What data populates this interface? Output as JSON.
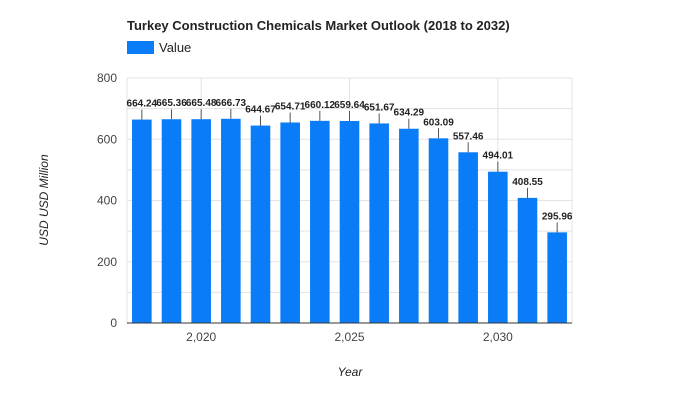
{
  "chart_data": {
    "type": "bar",
    "title": "Turkey Construction Chemicals Market Outlook (2018 to 2032)",
    "xlabel": "Year",
    "ylabel": "USD USD Million",
    "legend": {
      "entries": [
        "Value"
      ],
      "placement": "top-left"
    },
    "color": "#0a7cf7",
    "grid": true,
    "x": [
      2018,
      2019,
      2020,
      2021,
      2022,
      2023,
      2024,
      2025,
      2026,
      2027,
      2028,
      2029,
      2030,
      2031,
      2032
    ],
    "x_tick_values": [
      2020,
      2025,
      2030
    ],
    "x_tick_labels": [
      "2,020",
      "2,025",
      "2,030"
    ],
    "ylim": [
      0,
      800
    ],
    "y_tick_values": [
      0,
      200,
      400,
      600,
      800
    ],
    "y_tick_labels": [
      "0",
      "200",
      "400",
      "600",
      "800"
    ],
    "series": [
      {
        "name": "Value",
        "values": [
          664.24,
          665.36,
          665.48,
          666.73,
          644.67,
          654.71,
          660.12,
          659.64,
          651.67,
          634.29,
          603.09,
          557.46,
          494.01,
          408.55,
          295.96
        ],
        "labels": [
          "664.24",
          "665.36",
          "665.48",
          "666.73",
          "644.67",
          "654.71",
          "660.12",
          "659.64",
          "651.67",
          "634.29",
          "603.09",
          "557.46",
          "494.01",
          "408.55",
          "295.96"
        ]
      }
    ]
  }
}
